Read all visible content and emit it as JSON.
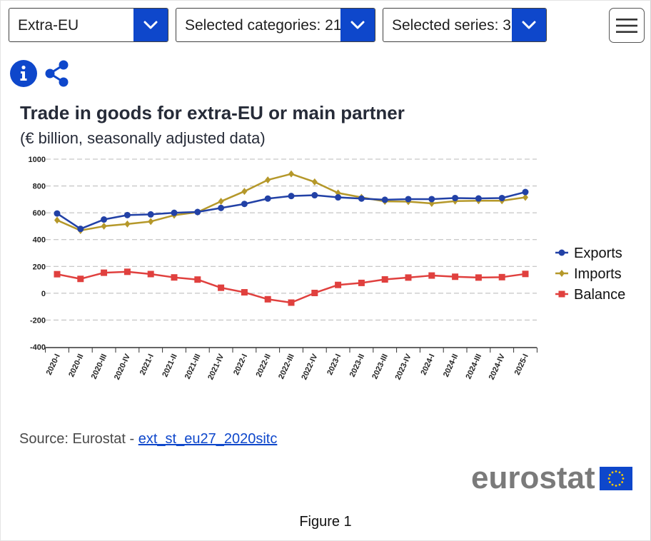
{
  "controls": {
    "partner": {
      "label": "Extra-EU"
    },
    "categories": {
      "label": "Selected categories: 21"
    },
    "series": {
      "label": "Selected series: 3"
    }
  },
  "icons": {
    "info": "info-icon",
    "share": "share-icon",
    "menu": "hamburger-menu-icon",
    "dropdown": "chevron-down-icon"
  },
  "colors": {
    "accent": "#0e47cb",
    "exports": "#2241a6",
    "imports": "#b5982a",
    "balance": "#e0403e"
  },
  "chart_data": {
    "type": "line",
    "title": "Trade in goods for extra-EU or main partner",
    "subtitle": "(€ billion, seasonally adjusted data)",
    "xlabel": "",
    "ylabel": "",
    "ylim": [
      -400,
      1000
    ],
    "yticks": [
      1000,
      800,
      600,
      400,
      200,
      0,
      -200,
      -400
    ],
    "grid": true,
    "legend_position": "right",
    "categories": [
      "2020-I",
      "2020-II",
      "2020-III",
      "2020-IV",
      "2021-I",
      "2021-II",
      "2021-III",
      "2021-IV",
      "2022-I",
      "2022-II",
      "2022-III",
      "2022-IV",
      "2023-I",
      "2023-II",
      "2023-III",
      "2023-IV",
      "2024-I",
      "2024-II",
      "2024-III",
      "2024-IV",
      "2025-I"
    ],
    "series": [
      {
        "name": "Exports",
        "marker": "circle",
        "color": "#2241a6",
        "values": [
          595,
          480,
          550,
          583,
          588,
          600,
          606,
          636,
          666,
          706,
          725,
          731,
          715,
          706,
          697,
          702,
          702,
          710,
          707,
          710,
          755
        ]
      },
      {
        "name": "Imports",
        "marker": "diamond",
        "color": "#b5982a",
        "values": [
          545,
          468,
          500,
          516,
          535,
          582,
          605,
          685,
          760,
          845,
          890,
          830,
          748,
          715,
          685,
          683,
          670,
          687,
          690,
          690,
          715
        ]
      },
      {
        "name": "Balance",
        "marker": "square",
        "color": "#e0403e",
        "values": [
          142,
          107,
          153,
          160,
          143,
          118,
          102,
          41,
          7,
          -45,
          -70,
          2,
          62,
          77,
          103,
          117,
          132,
          123,
          117,
          120,
          144
        ]
      }
    ]
  },
  "source": {
    "prefix": "Source: Eurostat - ",
    "link_text": "ext_st_eu27_2020sitc"
  },
  "logo": {
    "text": "eurostat"
  },
  "figure_label": "Figure 1"
}
